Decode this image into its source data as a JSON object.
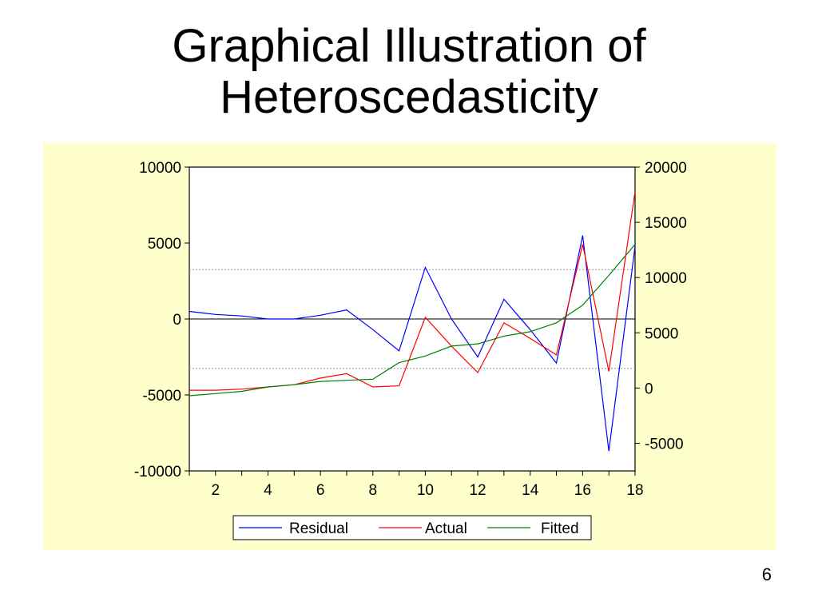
{
  "slide": {
    "title_line1": "Graphical Illustration of",
    "title_line2": "Heteroscedasticity",
    "page_number": "6"
  },
  "chart_data": {
    "type": "line",
    "title": "",
    "x": [
      1,
      2,
      3,
      4,
      5,
      6,
      7,
      8,
      9,
      10,
      11,
      12,
      13,
      14,
      15,
      16,
      17,
      18
    ],
    "x_ticks": [
      2,
      4,
      6,
      8,
      10,
      12,
      14,
      16,
      18
    ],
    "left_axis": {
      "ylim": [
        -10000,
        10000
      ],
      "ticks": [
        10000,
        5000,
        0,
        -5000,
        -10000
      ]
    },
    "right_axis": {
      "ylim": [
        -7500,
        20000
      ],
      "ticks": [
        20000,
        15000,
        10000,
        5000,
        0,
        -5000
      ]
    },
    "reference_lines_left_axis": [
      3250,
      -3250
    ],
    "zero_line_left_axis": 0,
    "legend_position": "bottom",
    "series": [
      {
        "name": "Residual",
        "axis": "left",
        "color": "#0000ff",
        "values": [
          500,
          300,
          200,
          0,
          0,
          250,
          600,
          -700,
          -2100,
          3400,
          0,
          -2500,
          1300,
          -700,
          -2900,
          5500,
          -8700,
          4800
        ]
      },
      {
        "name": "Actual",
        "axis": "right",
        "color": "#ff0000",
        "values": [
          -200,
          -200,
          -100,
          100,
          300,
          900,
          1300,
          100,
          200,
          6400,
          3800,
          1400,
          5900,
          4500,
          3000,
          13000,
          1500,
          17800
        ]
      },
      {
        "name": "Fitted",
        "axis": "right",
        "color": "#008000",
        "values": [
          -700,
          -500,
          -300,
          100,
          300,
          600,
          700,
          800,
          2300,
          2900,
          3800,
          4000,
          4700,
          5100,
          5900,
          7500,
          10200,
          13000
        ]
      }
    ]
  }
}
